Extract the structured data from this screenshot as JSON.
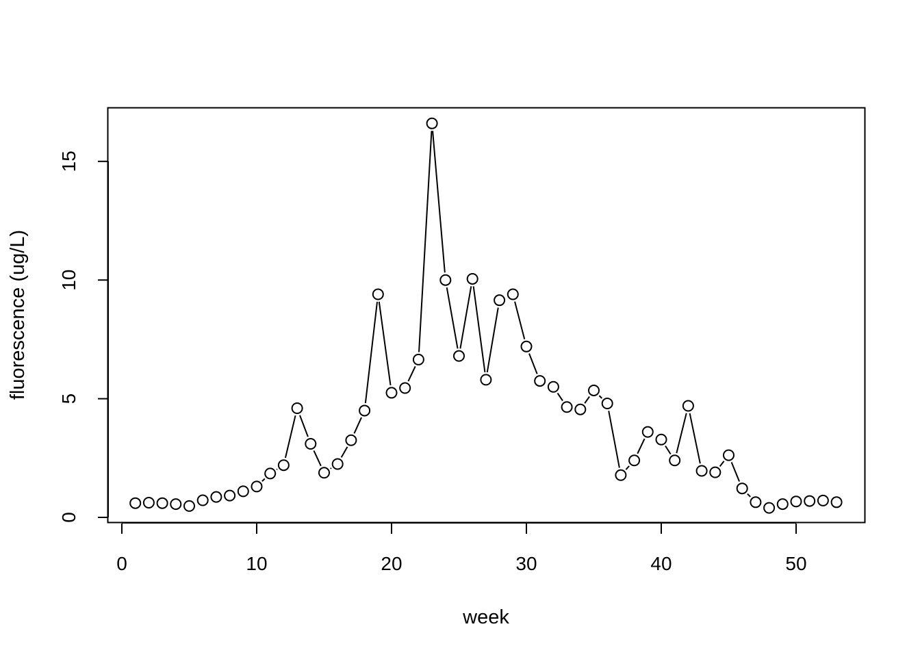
{
  "chart_data": {
    "type": "line",
    "style": "points-and-lines (type b)",
    "title": "",
    "xlabel": "week",
    "ylabel": "fluorescence (ug/L)",
    "xlim": [
      0,
      55
    ],
    "ylim": [
      0,
      17
    ],
    "x_ticks": [
      0,
      10,
      20,
      30,
      40,
      50
    ],
    "y_ticks": [
      0,
      5,
      10,
      15
    ],
    "grid": false,
    "legend": "none",
    "series": [
      {
        "marker": "open-circle",
        "color": "#000000",
        "x": [
          1,
          2,
          3,
          4,
          5,
          6,
          7,
          8,
          9,
          10,
          11,
          12,
          13,
          14,
          15,
          16,
          17,
          18,
          19,
          20,
          21,
          22,
          23,
          24,
          25,
          26,
          27,
          28,
          29,
          30,
          31,
          32,
          33,
          34,
          35,
          36,
          37,
          38,
          39,
          40,
          41,
          42,
          43,
          44,
          45,
          46,
          47,
          48,
          49,
          50,
          51,
          52,
          53
        ],
        "values": [
          0.6,
          0.62,
          0.6,
          0.56,
          0.48,
          0.72,
          0.86,
          0.92,
          1.1,
          1.3,
          1.85,
          2.2,
          4.6,
          3.1,
          1.88,
          2.25,
          3.25,
          4.5,
          9.4,
          5.25,
          5.45,
          6.65,
          16.6,
          10.0,
          6.8,
          10.05,
          5.8,
          9.15,
          9.4,
          7.2,
          5.75,
          5.5,
          4.65,
          4.55,
          5.35,
          4.8,
          1.78,
          2.4,
          3.6,
          3.28,
          2.4,
          4.7,
          1.96,
          1.9,
          2.62,
          1.22,
          0.64,
          0.4,
          0.56,
          0.67,
          0.69,
          0.71,
          0.64
        ]
      }
    ]
  }
}
